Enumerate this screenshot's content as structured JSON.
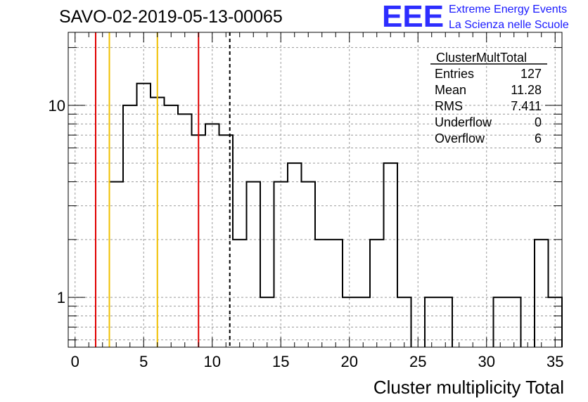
{
  "header": {
    "title": "SAVO-02-2019-05-13-00065",
    "logo_mark": "EEE",
    "logo_line1": "Extreme Energy Events",
    "logo_line2": "La Scienza nelle Scuole",
    "logo_color": "#1a1aff"
  },
  "stats_box": {
    "name": "ClusterMultTotal",
    "rows": [
      {
        "label": "Entries",
        "value": "127"
      },
      {
        "label": "Mean",
        "value": "11.28"
      },
      {
        "label": "RMS",
        "value": "7.411"
      },
      {
        "label": "Underflow",
        "value": "0"
      },
      {
        "label": "Overflow",
        "value": "6"
      }
    ]
  },
  "chart_data": {
    "type": "histogram",
    "xlabel": "Cluster multiplicity Total",
    "ylabel": "",
    "xlim": [
      -0.5,
      35.5
    ],
    "ylim": [
      0.55,
      24
    ],
    "yscale": "log",
    "grid": true,
    "bin_edges_start": -0.5,
    "bin_width": 1,
    "counts": [
      0,
      0,
      0,
      4,
      10,
      13,
      11,
      10,
      9,
      7,
      8,
      7,
      2,
      4,
      1,
      4,
      5,
      4,
      2,
      2,
      1,
      1,
      2,
      5,
      1,
      0,
      1,
      1,
      0,
      0,
      0,
      1,
      1,
      0,
      2,
      1
    ],
    "x_ticks": [
      "0",
      "5",
      "10",
      "15",
      "20",
      "25",
      "30",
      "35"
    ],
    "x_tick_values": [
      0,
      5,
      10,
      15,
      20,
      25,
      30,
      35
    ],
    "y_ticks": [
      "1",
      "10"
    ],
    "y_tick_values": [
      1,
      10
    ],
    "vertical_lines": [
      {
        "x": 1.5,
        "color": "#e00000",
        "style": "solid"
      },
      {
        "x": 2.5,
        "color": "#f0c000",
        "style": "solid"
      },
      {
        "x": 6.0,
        "color": "#f0c000",
        "style": "solid"
      },
      {
        "x": 9.0,
        "color": "#e00000",
        "style": "solid"
      },
      {
        "x": 11.28,
        "color": "#000000",
        "style": "dashed"
      }
    ]
  }
}
